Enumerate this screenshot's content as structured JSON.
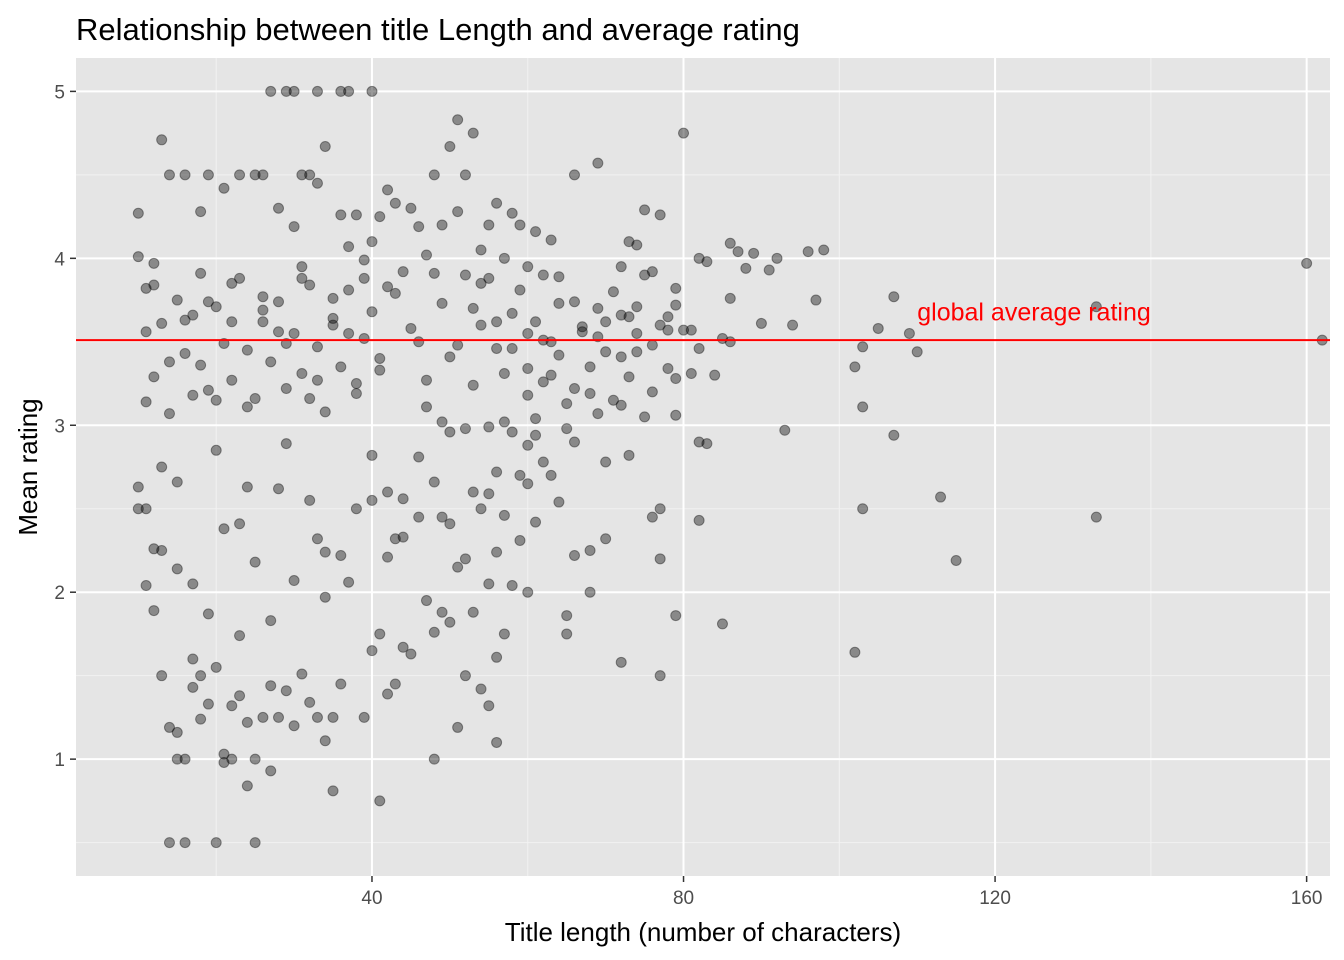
{
  "chart_data": {
    "type": "scatter",
    "title": "Relationship between title Length and average rating",
    "xlabel": "Title length (number of characters)",
    "ylabel": "Mean rating",
    "xlim": [
      2,
      163
    ],
    "ylim": [
      0.3,
      5.2
    ],
    "x_ticks": [
      40,
      80,
      120,
      160
    ],
    "y_ticks": [
      1,
      2,
      3,
      4,
      5
    ],
    "x_tick_labels": [
      "40",
      "80",
      "120",
      "160"
    ],
    "y_tick_labels": [
      "1",
      "2",
      "3",
      "4",
      "5"
    ],
    "grid": true,
    "point_color": "#000000",
    "point_opacity": 0.4,
    "panel_background": "#e5e5e5",
    "reference_line": {
      "y": 3.51,
      "color": "#ff0000"
    },
    "annotation": {
      "text": "global average rating",
      "x": 125,
      "y": 3.68,
      "color": "#ff0000"
    },
    "points": [
      [
        160,
        3.97
      ],
      [
        133,
        3.71
      ],
      [
        133,
        2.45
      ],
      [
        115,
        2.19
      ],
      [
        113,
        2.57
      ],
      [
        110,
        3.44
      ],
      [
        109,
        3.55
      ],
      [
        107,
        3.77
      ],
      [
        107,
        2.94
      ],
      [
        105,
        3.58
      ],
      [
        103,
        3.47
      ],
      [
        103,
        3.11
      ],
      [
        103,
        2.5
      ],
      [
        102,
        3.35
      ],
      [
        102,
        1.64
      ],
      [
        98,
        4.05
      ],
      [
        97,
        3.75
      ],
      [
        96,
        4.04
      ],
      [
        94,
        3.6
      ],
      [
        93,
        2.97
      ],
      [
        92,
        4.0
      ],
      [
        91,
        3.93
      ],
      [
        90,
        3.61
      ],
      [
        89,
        4.03
      ],
      [
        88,
        3.94
      ],
      [
        87,
        4.04
      ],
      [
        86,
        4.09
      ],
      [
        86,
        3.76
      ],
      [
        86,
        3.5
      ],
      [
        85,
        3.52
      ],
      [
        85,
        1.81
      ],
      [
        84,
        3.3
      ],
      [
        83,
        3.98
      ],
      [
        82,
        4.0
      ],
      [
        82,
        3.46
      ],
      [
        82,
        2.9
      ],
      [
        82,
        2.43
      ],
      [
        83,
        2.89
      ],
      [
        81,
        3.57
      ],
      [
        81,
        3.31
      ],
      [
        80,
        4.75
      ],
      [
        80,
        3.57
      ],
      [
        79,
        3.82
      ],
      [
        79,
        3.72
      ],
      [
        79,
        3.28
      ],
      [
        79,
        3.06
      ],
      [
        79,
        1.86
      ],
      [
        78,
        3.57
      ],
      [
        78,
        3.65
      ],
      [
        78,
        3.34
      ],
      [
        77,
        4.26
      ],
      [
        77,
        2.5
      ],
      [
        77,
        2.2
      ],
      [
        77,
        1.5
      ],
      [
        76,
        3.92
      ],
      [
        76,
        3.48
      ],
      [
        76,
        2.45
      ],
      [
        75,
        4.29
      ],
      [
        75,
        3.05
      ],
      [
        74,
        4.08
      ],
      [
        74,
        3.71
      ],
      [
        74,
        3.44
      ],
      [
        73,
        2.82
      ],
      [
        73,
        3.65
      ],
      [
        73,
        4.1
      ],
      [
        72,
        3.95
      ],
      [
        72,
        3.41
      ],
      [
        72,
        1.58
      ],
      [
        72,
        3.12
      ],
      [
        71,
        3.8
      ],
      [
        70,
        3.62
      ],
      [
        70,
        2.78
      ],
      [
        70,
        2.32
      ],
      [
        69,
        4.57
      ],
      [
        69,
        3.53
      ],
      [
        69,
        3.07
      ],
      [
        68,
        3.35
      ],
      [
        68,
        2.0
      ],
      [
        68,
        2.25
      ],
      [
        67,
        3.59
      ],
      [
        66,
        4.5
      ],
      [
        66,
        3.74
      ],
      [
        66,
        2.9
      ],
      [
        66,
        2.22
      ],
      [
        65,
        3.13
      ],
      [
        65,
        1.86
      ],
      [
        65,
        1.75
      ],
      [
        64,
        3.89
      ],
      [
        64,
        3.42
      ],
      [
        64,
        2.54
      ],
      [
        63,
        4.11
      ],
      [
        63,
        3.5
      ],
      [
        63,
        2.7
      ],
      [
        62,
        3.9
      ],
      [
        62,
        3.26
      ],
      [
        62,
        2.78
      ],
      [
        61,
        4.16
      ],
      [
        61,
        3.62
      ],
      [
        61,
        3.04
      ],
      [
        61,
        2.42
      ],
      [
        60,
        3.95
      ],
      [
        60,
        3.55
      ],
      [
        60,
        3.18
      ],
      [
        60,
        2.88
      ],
      [
        60,
        2.65
      ],
      [
        60,
        2.0
      ],
      [
        59,
        4.2
      ],
      [
        59,
        3.81
      ],
      [
        59,
        2.31
      ],
      [
        58,
        4.27
      ],
      [
        58,
        3.46
      ],
      [
        58,
        2.96
      ],
      [
        58,
        2.04
      ],
      [
        57,
        4.0
      ],
      [
        57,
        3.31
      ],
      [
        57,
        2.46
      ],
      [
        57,
        1.75
      ],
      [
        56,
        4.33
      ],
      [
        56,
        3.62
      ],
      [
        56,
        2.72
      ],
      [
        56,
        2.24
      ],
      [
        56,
        1.61
      ],
      [
        56,
        1.1
      ],
      [
        55,
        4.2
      ],
      [
        55,
        3.88
      ],
      [
        55,
        2.99
      ],
      [
        55,
        2.05
      ],
      [
        55,
        1.32
      ],
      [
        54,
        4.05
      ],
      [
        54,
        3.6
      ],
      [
        54,
        2.5
      ],
      [
        54,
        1.42
      ],
      [
        53,
        4.75
      ],
      [
        53,
        3.7
      ],
      [
        53,
        2.6
      ],
      [
        53,
        1.88
      ],
      [
        52,
        4.5
      ],
      [
        52,
        3.9
      ],
      [
        52,
        2.2
      ],
      [
        52,
        1.5
      ],
      [
        51,
        4.83
      ],
      [
        51,
        4.28
      ],
      [
        51,
        2.15
      ],
      [
        51,
        1.19
      ],
      [
        50,
        4.67
      ],
      [
        50,
        3.41
      ],
      [
        50,
        2.96
      ],
      [
        50,
        1.82
      ],
      [
        49,
        4.2
      ],
      [
        49,
        3.02
      ],
      [
        49,
        2.45
      ],
      [
        49,
        1.88
      ],
      [
        48,
        4.5
      ],
      [
        48,
        3.91
      ],
      [
        48,
        1.0
      ],
      [
        48,
        1.76
      ],
      [
        47,
        4.02
      ],
      [
        47,
        3.27
      ],
      [
        47,
        1.95
      ],
      [
        46,
        4.19
      ],
      [
        46,
        3.5
      ],
      [
        46,
        2.45
      ],
      [
        45,
        1.63
      ],
      [
        45,
        4.3
      ],
      [
        44,
        1.67
      ],
      [
        44,
        2.56
      ],
      [
        44,
        3.92
      ],
      [
        43,
        4.33
      ],
      [
        43,
        2.32
      ],
      [
        43,
        1.45
      ],
      [
        42,
        4.41
      ],
      [
        42,
        3.83
      ],
      [
        42,
        2.21
      ],
      [
        42,
        1.39
      ],
      [
        41,
        4.25
      ],
      [
        41,
        0.75
      ],
      [
        41,
        1.75
      ],
      [
        41,
        3.33
      ],
      [
        40,
        5.0
      ],
      [
        40,
        4.1
      ],
      [
        40,
        1.65
      ],
      [
        40,
        2.55
      ],
      [
        39,
        3.88
      ],
      [
        39,
        1.25
      ],
      [
        38,
        4.26
      ],
      [
        38,
        3.19
      ],
      [
        37,
        5.0
      ],
      [
        37,
        4.07
      ],
      [
        37,
        2.06
      ],
      [
        36,
        5.0
      ],
      [
        36,
        4.26
      ],
      [
        36,
        1.45
      ],
      [
        35,
        3.6
      ],
      [
        35,
        0.81
      ],
      [
        35,
        1.25
      ],
      [
        34,
        4.67
      ],
      [
        34,
        1.11
      ],
      [
        34,
        2.24
      ],
      [
        33,
        5.0
      ],
      [
        33,
        4.45
      ],
      [
        33,
        1.25
      ],
      [
        33,
        2.32
      ],
      [
        32,
        4.5
      ],
      [
        32,
        1.34
      ],
      [
        32,
        3.16
      ],
      [
        31,
        4.5
      ],
      [
        31,
        1.51
      ],
      [
        31,
        3.95
      ],
      [
        30,
        5.0
      ],
      [
        30,
        1.2
      ],
      [
        30,
        4.19
      ],
      [
        29,
        5.0
      ],
      [
        29,
        1.41
      ],
      [
        29,
        2.89
      ],
      [
        28,
        4.3
      ],
      [
        28,
        1.25
      ],
      [
        28,
        3.56
      ],
      [
        27,
        5.0
      ],
      [
        27,
        0.93
      ],
      [
        27,
        1.44
      ],
      [
        26,
        4.5
      ],
      [
        26,
        1.25
      ],
      [
        26,
        3.77
      ],
      [
        25,
        0.5
      ],
      [
        25,
        1.0
      ],
      [
        25,
        4.5
      ],
      [
        24,
        0.84
      ],
      [
        24,
        1.22
      ],
      [
        24,
        2.63
      ],
      [
        23,
        4.5
      ],
      [
        23,
        1.38
      ],
      [
        23,
        2.41
      ],
      [
        22,
        1.0
      ],
      [
        22,
        1.32
      ],
      [
        22,
        3.62
      ],
      [
        21,
        1.03
      ],
      [
        21,
        0.98
      ],
      [
        21,
        4.42
      ],
      [
        20,
        0.5
      ],
      [
        20,
        1.55
      ],
      [
        20,
        2.85
      ],
      [
        19,
        4.5
      ],
      [
        19,
        1.33
      ],
      [
        19,
        3.74
      ],
      [
        18,
        1.5
      ],
      [
        18,
        1.24
      ],
      [
        18,
        4.28
      ],
      [
        17,
        1.6
      ],
      [
        17,
        1.43
      ],
      [
        17,
        3.18
      ],
      [
        16,
        0.5
      ],
      [
        16,
        1.0
      ],
      [
        16,
        4.5
      ],
      [
        15,
        1.16
      ],
      [
        15,
        1.0
      ],
      [
        15,
        2.66
      ],
      [
        14,
        0.5
      ],
      [
        14,
        1.19
      ],
      [
        14,
        4.5
      ],
      [
        13,
        1.5
      ],
      [
        13,
        4.71
      ],
      [
        13,
        2.25
      ],
      [
        12,
        2.26
      ],
      [
        12,
        1.89
      ],
      [
        12,
        3.97
      ],
      [
        11,
        2.04
      ],
      [
        11,
        2.5
      ],
      [
        11,
        3.14
      ],
      [
        10,
        4.27
      ],
      [
        10,
        4.01
      ],
      [
        10,
        2.5
      ],
      [
        10,
        2.63
      ],
      [
        162,
        3.51
      ],
      [
        11,
        3.56
      ],
      [
        12,
        3.84
      ],
      [
        13,
        2.75
      ],
      [
        14,
        3.38
      ],
      [
        15,
        2.14
      ],
      [
        16,
        3.63
      ],
      [
        17,
        2.05
      ],
      [
        18,
        3.91
      ],
      [
        19,
        1.87
      ],
      [
        20,
        3.15
      ],
      [
        21,
        2.38
      ],
      [
        22,
        3.85
      ],
      [
        23,
        1.74
      ],
      [
        24,
        3.11
      ],
      [
        25,
        2.18
      ],
      [
        26,
        3.69
      ],
      [
        27,
        1.83
      ],
      [
        28,
        2.62
      ],
      [
        29,
        3.49
      ],
      [
        30,
        2.07
      ],
      [
        31,
        3.88
      ],
      [
        32,
        2.55
      ],
      [
        33,
        3.27
      ],
      [
        34,
        1.97
      ],
      [
        35,
        3.76
      ],
      [
        36,
        2.22
      ],
      [
        37,
        3.55
      ],
      [
        38,
        2.5
      ],
      [
        39,
        3.99
      ],
      [
        40,
        2.82
      ],
      [
        41,
        3.4
      ],
      [
        42,
        2.6
      ],
      [
        43,
        3.79
      ],
      [
        44,
        2.33
      ],
      [
        45,
        3.58
      ],
      [
        46,
        2.81
      ],
      [
        47,
        3.11
      ],
      [
        48,
        2.66
      ],
      [
        49,
        3.73
      ],
      [
        50,
        2.41
      ],
      [
        51,
        3.48
      ],
      [
        52,
        2.98
      ],
      [
        53,
        3.24
      ],
      [
        54,
        3.85
      ],
      [
        55,
        2.59
      ],
      [
        56,
        3.46
      ],
      [
        57,
        3.02
      ],
      [
        58,
        3.67
      ],
      [
        59,
        2.7
      ],
      [
        60,
        3.34
      ],
      [
        61,
        2.94
      ],
      [
        62,
        3.51
      ],
      [
        63,
        3.3
      ],
      [
        64,
        3.73
      ],
      [
        65,
        2.98
      ],
      [
        66,
        3.22
      ],
      [
        67,
        3.56
      ],
      [
        68,
        3.19
      ],
      [
        69,
        3.7
      ],
      [
        70,
        3.44
      ],
      [
        71,
        3.15
      ],
      [
        72,
        3.66
      ],
      [
        73,
        3.29
      ],
      [
        74,
        3.55
      ],
      [
        75,
        3.9
      ],
      [
        76,
        3.2
      ],
      [
        77,
        3.6
      ],
      [
        11,
        3.82
      ],
      [
        12,
        3.29
      ],
      [
        13,
        3.61
      ],
      [
        14,
        3.07
      ],
      [
        15,
        3.75
      ],
      [
        16,
        3.43
      ],
      [
        17,
        3.66
      ],
      [
        18,
        3.36
      ],
      [
        19,
        3.21
      ],
      [
        20,
        3.71
      ],
      [
        21,
        3.49
      ],
      [
        22,
        3.27
      ],
      [
        23,
        3.88
      ],
      [
        24,
        3.45
      ],
      [
        25,
        3.16
      ],
      [
        26,
        3.62
      ],
      [
        27,
        3.38
      ],
      [
        28,
        3.74
      ],
      [
        29,
        3.22
      ],
      [
        30,
        3.55
      ],
      [
        31,
        3.31
      ],
      [
        32,
        3.84
      ],
      [
        33,
        3.47
      ],
      [
        34,
        3.08
      ],
      [
        35,
        3.64
      ],
      [
        36,
        3.35
      ],
      [
        37,
        3.81
      ],
      [
        38,
        3.25
      ],
      [
        39,
        3.52
      ],
      [
        40,
        3.68
      ]
    ]
  }
}
